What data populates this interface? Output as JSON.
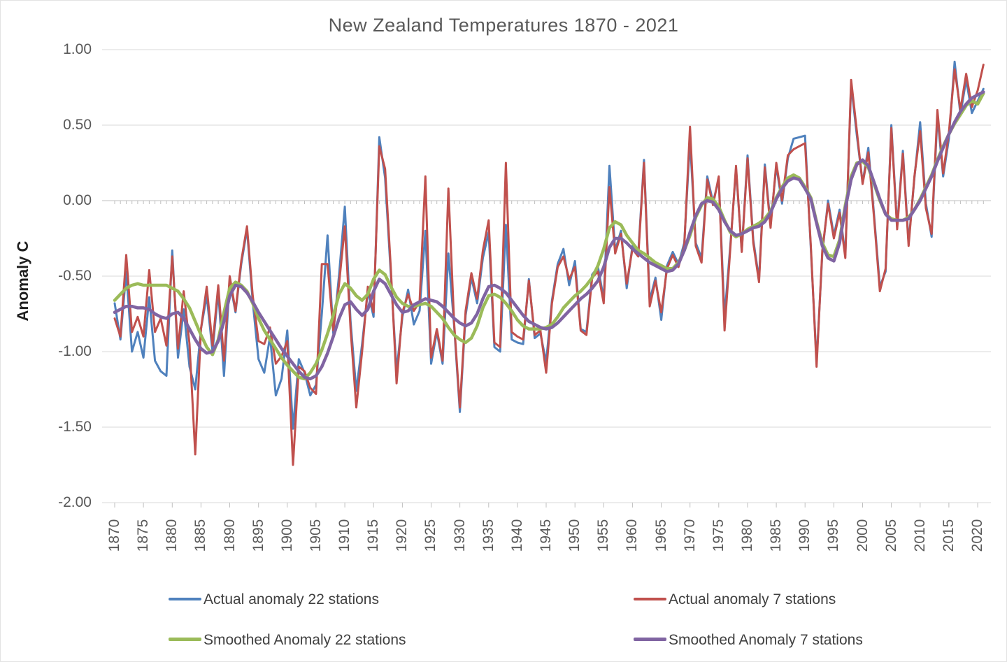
{
  "title": "New Zealand  Temperatures 1870 - 2021",
  "y_axis": {
    "title": "Anomaly  C",
    "tick_labels": [
      "1.00",
      "0.50",
      "0.00",
      "-0.50",
      "-1.00",
      "-1.50",
      "-2.00"
    ],
    "tick_values": [
      1,
      0.5,
      0,
      -0.5,
      -1,
      -1.5,
      -2
    ]
  },
  "x_axis": {
    "tick_years": [
      1870,
      1875,
      1880,
      1885,
      1890,
      1895,
      1900,
      1905,
      1910,
      1915,
      1920,
      1925,
      1930,
      1935,
      1940,
      1945,
      1950,
      1955,
      1960,
      1965,
      1970,
      1975,
      1980,
      1985,
      1990,
      1995,
      2000,
      2005,
      2010,
      2015,
      2020
    ]
  },
  "colors": {
    "actual22": "#4F81BD",
    "actual7": "#C0504D",
    "smoothed22": "#9BBB59",
    "smoothed7": "#8064A2",
    "gridline": "#D9D9D9",
    "zero_axis": "#BFBFBF",
    "tick_text": "#595959",
    "legend_text": "#404040"
  },
  "legend": {
    "items": [
      {
        "label": "Actual anomaly 22 stations",
        "series": "actual22"
      },
      {
        "label": "Actual anomaly 7 stations",
        "series": "actual7"
      },
      {
        "label": "Smoothed Anomaly 22 stations",
        "series": "smoothed22"
      },
      {
        "label": "Smoothed Anomaly 7 stations",
        "series": "smoothed7"
      }
    ]
  },
  "chart_data": {
    "type": "line",
    "title": "New Zealand  Temperatures 1870 - 2021",
    "xlabel": "",
    "ylabel": "Anomaly  C",
    "x_start_year": 1870,
    "x_end_year": 2021,
    "ylim": [
      -2.0,
      1.0
    ],
    "grid": "horizontal",
    "legend_position": "bottom",
    "series": [
      {
        "name": "Actual anomaly 22 stations",
        "key": "actual22",
        "color": "#4F81BD",
        "width": 3,
        "values": [
          -0.68,
          -0.92,
          -0.47,
          -1.0,
          -0.87,
          -1.04,
          -0.64,
          -1.06,
          -1.13,
          -1.16,
          -0.33,
          -1.04,
          -0.72,
          -1.1,
          -1.25,
          -0.85,
          -0.63,
          -1.0,
          -0.6,
          -1.16,
          -0.53,
          -0.74,
          -0.42,
          -0.19,
          -0.67,
          -1.05,
          -1.14,
          -0.9,
          -1.29,
          -1.18,
          -0.86,
          -1.51,
          -1.05,
          -1.14,
          -1.29,
          -1.22,
          -0.75,
          -0.23,
          -0.88,
          -0.49,
          -0.04,
          -0.8,
          -1.26,
          -0.95,
          -0.6,
          -0.77,
          0.42,
          0.15,
          -0.49,
          -1.13,
          -0.77,
          -0.59,
          -0.82,
          -0.73,
          -0.2,
          -1.08,
          -0.87,
          -1.08,
          -0.35,
          -0.83,
          -1.4,
          -0.76,
          -0.51,
          -0.68,
          -0.38,
          -0.21,
          -0.97,
          -1.0,
          -0.16,
          -0.92,
          -0.94,
          -0.95,
          -0.52,
          -0.91,
          -0.88,
          -1.07,
          -0.66,
          -0.42,
          -0.32,
          -0.56,
          -0.4,
          -0.85,
          -0.87,
          -0.49,
          -0.44,
          -0.65,
          0.23,
          -0.33,
          -0.2,
          -0.58,
          -0.3,
          -0.35,
          0.27,
          -0.66,
          -0.51,
          -0.79,
          -0.43,
          -0.34,
          -0.42,
          -0.28,
          0.4,
          -0.28,
          -0.38,
          0.16,
          -0.01,
          0.14,
          -0.77,
          -0.3,
          0.21,
          -0.33,
          0.3,
          -0.26,
          -0.52,
          0.24,
          -0.16,
          0.23,
          -0.02,
          0.28,
          0.41,
          0.42,
          0.43,
          -0.32,
          -1.07,
          -0.35,
          0.0,
          -0.23,
          -0.06,
          -0.36,
          0.77,
          0.43,
          0.12,
          0.35,
          -0.1,
          -0.57,
          -0.47,
          0.5,
          -0.17,
          0.33,
          -0.28,
          0.15,
          0.52,
          -0.02,
          -0.24,
          0.56,
          0.16,
          0.41,
          0.92,
          0.57,
          0.8,
          0.58,
          0.66,
          0.74
        ]
      },
      {
        "name": "Actual anomaly 7 stations",
        "key": "actual7",
        "color": "#C0504D",
        "width": 3,
        "values": [
          -0.78,
          -0.9,
          -0.36,
          -0.87,
          -0.77,
          -0.9,
          -0.46,
          -0.87,
          -0.78,
          -0.96,
          -0.37,
          -0.98,
          -0.6,
          -0.95,
          -1.68,
          -0.85,
          -0.57,
          -0.96,
          -0.56,
          -1.06,
          -0.5,
          -0.73,
          -0.4,
          -0.17,
          -0.63,
          -0.93,
          -0.95,
          -0.84,
          -1.08,
          -1.03,
          -0.93,
          -1.75,
          -1.1,
          -1.13,
          -1.24,
          -1.28,
          -0.42,
          -0.42,
          -0.86,
          -0.55,
          -0.17,
          -0.85,
          -1.37,
          -1.0,
          -0.57,
          -0.74,
          0.36,
          0.21,
          -0.45,
          -1.21,
          -0.74,
          -0.62,
          -0.73,
          -0.67,
          0.16,
          -1.04,
          -0.85,
          -1.06,
          0.08,
          -0.81,
          -1.37,
          -0.73,
          -0.48,
          -0.65,
          -0.33,
          -0.13,
          -0.94,
          -0.97,
          0.25,
          -0.87,
          -0.9,
          -0.92,
          -0.53,
          -0.89,
          -0.86,
          -1.14,
          -0.68,
          -0.44,
          -0.37,
          -0.52,
          -0.44,
          -0.86,
          -0.89,
          -0.51,
          -0.47,
          -0.68,
          0.09,
          -0.35,
          -0.22,
          -0.55,
          -0.32,
          -0.37,
          0.25,
          -0.7,
          -0.53,
          -0.74,
          -0.45,
          -0.36,
          -0.44,
          -0.3,
          0.49,
          -0.3,
          -0.41,
          0.14,
          -0.03,
          0.16,
          -0.86,
          -0.32,
          0.23,
          -0.34,
          0.28,
          -0.28,
          -0.54,
          0.22,
          -0.18,
          0.25,
          0.0,
          0.3,
          0.34,
          0.36,
          0.38,
          -0.3,
          -1.1,
          -0.33,
          -0.02,
          -0.25,
          -0.08,
          -0.38,
          0.8,
          0.46,
          0.11,
          0.32,
          -0.12,
          -0.6,
          -0.45,
          0.48,
          -0.19,
          0.31,
          -0.3,
          0.16,
          0.46,
          -0.05,
          -0.22,
          0.6,
          0.18,
          0.45,
          0.87,
          0.6,
          0.84,
          0.62,
          0.73,
          0.9
        ]
      },
      {
        "name": "Smoothed Anomaly 22 stations",
        "key": "smoothed22",
        "color": "#9BBB59",
        "width": 4.5,
        "values": [
          -0.66,
          -0.62,
          -0.58,
          -0.56,
          -0.55,
          -0.56,
          -0.56,
          -0.56,
          -0.56,
          -0.56,
          -0.58,
          -0.6,
          -0.65,
          -0.71,
          -0.8,
          -0.89,
          -0.97,
          -1.02,
          -0.92,
          -0.74,
          -0.58,
          -0.54,
          -0.56,
          -0.6,
          -0.68,
          -0.78,
          -0.86,
          -0.92,
          -0.98,
          -1.04,
          -1.09,
          -1.13,
          -1.17,
          -1.18,
          -1.14,
          -1.08,
          -0.99,
          -0.88,
          -0.76,
          -0.62,
          -0.55,
          -0.58,
          -0.63,
          -0.66,
          -0.62,
          -0.52,
          -0.46,
          -0.49,
          -0.57,
          -0.64,
          -0.68,
          -0.7,
          -0.7,
          -0.69,
          -0.68,
          -0.7,
          -0.74,
          -0.78,
          -0.84,
          -0.89,
          -0.92,
          -0.94,
          -0.91,
          -0.83,
          -0.71,
          -0.63,
          -0.62,
          -0.64,
          -0.68,
          -0.73,
          -0.79,
          -0.83,
          -0.85,
          -0.85,
          -0.85,
          -0.84,
          -0.82,
          -0.77,
          -0.71,
          -0.67,
          -0.63,
          -0.6,
          -0.56,
          -0.51,
          -0.43,
          -0.32,
          -0.18,
          -0.14,
          -0.16,
          -0.23,
          -0.28,
          -0.33,
          -0.35,
          -0.38,
          -0.41,
          -0.43,
          -0.45,
          -0.45,
          -0.41,
          -0.33,
          -0.23,
          -0.11,
          -0.03,
          0.02,
          0.01,
          -0.04,
          -0.13,
          -0.21,
          -0.24,
          -0.22,
          -0.19,
          -0.17,
          -0.15,
          -0.12,
          -0.07,
          0.02,
          0.09,
          0.15,
          0.17,
          0.15,
          0.09,
          0.02,
          -0.14,
          -0.28,
          -0.36,
          -0.37,
          -0.26,
          -0.03,
          0.16,
          0.25,
          0.26,
          0.22,
          0.11,
          0.0,
          -0.09,
          -0.12,
          -0.13,
          -0.13,
          -0.11,
          -0.06,
          0.01,
          0.09,
          0.17,
          0.27,
          0.36,
          0.44,
          0.51,
          0.57,
          0.63,
          0.66,
          0.64,
          0.71
        ]
      },
      {
        "name": "Smoothed Anomaly 7 stations",
        "key": "smoothed7",
        "color": "#8064A2",
        "width": 4.5,
        "values": [
          -0.74,
          -0.72,
          -0.7,
          -0.7,
          -0.71,
          -0.71,
          -0.72,
          -0.75,
          -0.77,
          -0.78,
          -0.75,
          -0.74,
          -0.78,
          -0.85,
          -0.92,
          -0.98,
          -1.01,
          -1.0,
          -0.93,
          -0.8,
          -0.63,
          -0.56,
          -0.57,
          -0.61,
          -0.67,
          -0.74,
          -0.8,
          -0.86,
          -0.92,
          -0.98,
          -1.03,
          -1.08,
          -1.13,
          -1.17,
          -1.18,
          -1.16,
          -1.1,
          -1.01,
          -0.9,
          -0.78,
          -0.69,
          -0.67,
          -0.72,
          -0.76,
          -0.72,
          -0.6,
          -0.52,
          -0.55,
          -0.62,
          -0.69,
          -0.74,
          -0.73,
          -0.69,
          -0.67,
          -0.65,
          -0.66,
          -0.67,
          -0.7,
          -0.74,
          -0.78,
          -0.81,
          -0.83,
          -0.81,
          -0.75,
          -0.65,
          -0.57,
          -0.56,
          -0.58,
          -0.61,
          -0.66,
          -0.71,
          -0.76,
          -0.8,
          -0.82,
          -0.84,
          -0.85,
          -0.84,
          -0.81,
          -0.77,
          -0.73,
          -0.69,
          -0.65,
          -0.62,
          -0.58,
          -0.53,
          -0.44,
          -0.31,
          -0.25,
          -0.25,
          -0.28,
          -0.32,
          -0.35,
          -0.38,
          -0.41,
          -0.43,
          -0.45,
          -0.47,
          -0.46,
          -0.42,
          -0.33,
          -0.21,
          -0.1,
          -0.02,
          0.0,
          -0.01,
          -0.06,
          -0.14,
          -0.2,
          -0.23,
          -0.22,
          -0.2,
          -0.18,
          -0.17,
          -0.14,
          -0.08,
          0.01,
          0.08,
          0.13,
          0.15,
          0.14,
          0.08,
          0.01,
          -0.15,
          -0.3,
          -0.38,
          -0.4,
          -0.28,
          -0.05,
          0.14,
          0.24,
          0.27,
          0.23,
          0.12,
          0.01,
          -0.09,
          -0.13,
          -0.13,
          -0.13,
          -0.12,
          -0.06,
          0.0,
          0.08,
          0.16,
          0.26,
          0.35,
          0.44,
          0.52,
          0.59,
          0.64,
          0.68,
          0.7,
          0.72
        ]
      }
    ]
  }
}
